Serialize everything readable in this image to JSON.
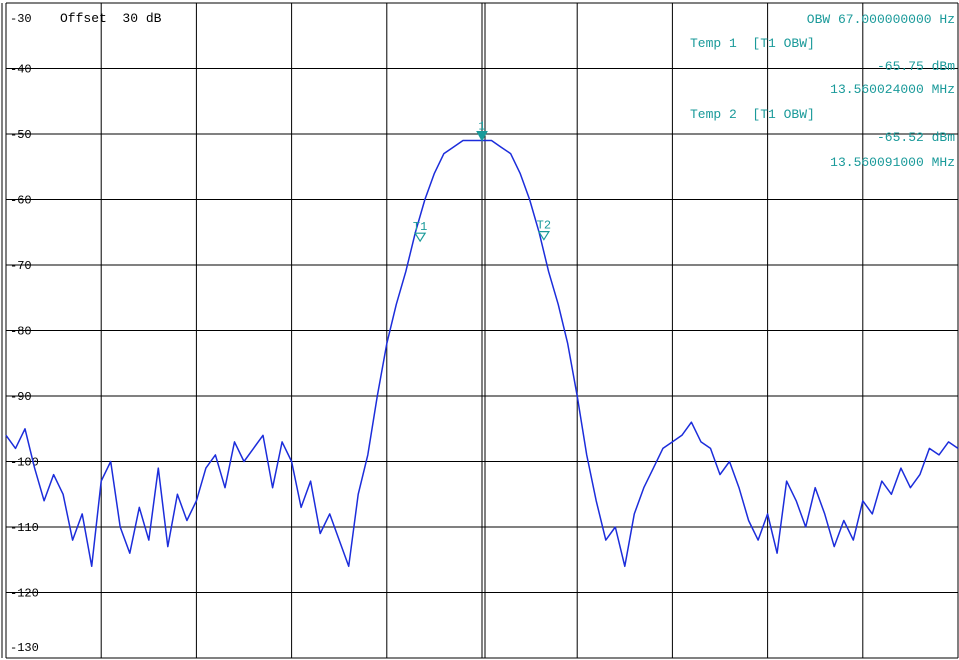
{
  "header": {
    "offset_text": "Offset  30 dB"
  },
  "readout": {
    "lines": [
      "OBW 67.000000000 Hz",
      "Temp 1  [T1 OBW]",
      "-65.75 dBm",
      "13.560024000 MHz",
      "Temp 2  [T1 OBW]",
      "-65.52 dBm",
      "13.560091000 MHz"
    ]
  },
  "colors": {
    "trace": "#1c2ddb",
    "marker": "#1a9a9a",
    "grid": "#000000"
  },
  "chart_data": {
    "type": "line",
    "title": "",
    "xlabel": "",
    "ylabel": "",
    "ylim": [
      -130,
      -30
    ],
    "xlim": [
      0,
      10
    ],
    "grid": true,
    "y_ticks": [
      {
        "value": -30,
        "label": "-30"
      },
      {
        "value": -40,
        "label": "-40"
      },
      {
        "value": -50,
        "label": "-50"
      },
      {
        "value": -60,
        "label": "-60"
      },
      {
        "value": -70,
        "label": "-70"
      },
      {
        "value": -80,
        "label": "-80"
      },
      {
        "value": -90,
        "label": "-90"
      },
      {
        "value": -100,
        "label": "-100"
      },
      {
        "value": -110,
        "label": "-110"
      },
      {
        "value": -120,
        "label": "-120"
      },
      {
        "value": -130,
        "label": "-130"
      }
    ],
    "series": [
      {
        "x": [
          0.0,
          0.1,
          0.2,
          0.3,
          0.4,
          0.5,
          0.6,
          0.7,
          0.8,
          0.9,
          1.0,
          1.1,
          1.2,
          1.3,
          1.4,
          1.5,
          1.6,
          1.7,
          1.8,
          1.9,
          2.0,
          2.1,
          2.2,
          2.3,
          2.4,
          2.5,
          2.6,
          2.7,
          2.8,
          2.9,
          3.0,
          3.1,
          3.2,
          3.3,
          3.4,
          3.5,
          3.6,
          3.7,
          3.8,
          3.9,
          4.0,
          4.1,
          4.2,
          4.3,
          4.4,
          4.5,
          4.6,
          4.7,
          4.8,
          4.9,
          5.0,
          5.1,
          5.2,
          5.3,
          5.4,
          5.5,
          5.6,
          5.7,
          5.8,
          5.9,
          6.0,
          6.1,
          6.2,
          6.3,
          6.4,
          6.5,
          6.6,
          6.7,
          6.8,
          6.9,
          7.0,
          7.1,
          7.2,
          7.3,
          7.4,
          7.5,
          7.6,
          7.7,
          7.8,
          7.9,
          8.0,
          8.1,
          8.2,
          8.3,
          8.4,
          8.5,
          8.6,
          8.7,
          8.8,
          8.9,
          9.0,
          9.1,
          9.2,
          9.3,
          9.4,
          9.5,
          9.6,
          9.7,
          9.8,
          9.9,
          10.0
        ],
        "values": [
          -96,
          -98,
          -95,
          -101,
          -106,
          -102,
          -105,
          -112,
          -108,
          -116,
          -103,
          -100,
          -110,
          -114,
          -107,
          -112,
          -101,
          -113,
          -105,
          -109,
          -106,
          -101,
          -99,
          -104,
          -97,
          -100,
          -98,
          -96,
          -104,
          -97,
          -100,
          -107,
          -103,
          -111,
          -108,
          -112,
          -116,
          -105,
          -99,
          -90,
          -82,
          -76,
          -71,
          -65,
          -60,
          -56,
          -53,
          -52,
          -51,
          -51,
          -51,
          -51,
          -52,
          -53,
          -56,
          -60,
          -65,
          -71,
          -76,
          -82,
          -90,
          -99,
          -106,
          -112,
          -110,
          -116,
          -108,
          -104,
          -101,
          -98,
          -97,
          -96,
          -94,
          -97,
          -98,
          -102,
          -100,
          -104,
          -109,
          -112,
          -108,
          -114,
          -103,
          -106,
          -110,
          -104,
          -108,
          -113,
          -109,
          -112,
          -106,
          -108,
          -103,
          -105,
          -101,
          -104,
          -102,
          -98,
          -99,
          -97,
          -98
        ]
      }
    ],
    "markers": [
      {
        "label": "1",
        "x": 5.0,
        "y": -51,
        "shape": "down-filled"
      },
      {
        "label": "T1",
        "x": 4.35,
        "y": -65.75,
        "shape": "down-open"
      },
      {
        "label": "T2",
        "x": 5.65,
        "y": -65.52,
        "shape": "down-open"
      }
    ]
  }
}
